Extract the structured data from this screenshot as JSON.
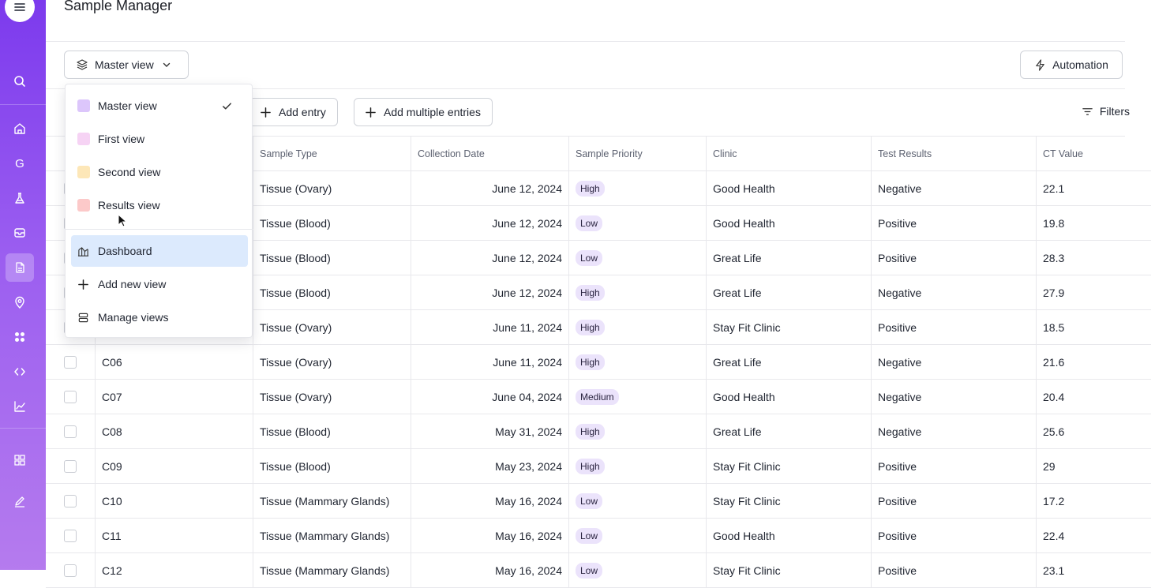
{
  "app": {
    "title": "Sample Manager"
  },
  "sidebar": {
    "items": [
      {
        "name": "search",
        "icon": "search-icon"
      },
      {
        "name": "home",
        "icon": "home-icon"
      },
      {
        "name": "g",
        "label": "G"
      },
      {
        "name": "lab",
        "icon": "flask-icon"
      },
      {
        "name": "inbox",
        "icon": "inbox-icon"
      },
      {
        "name": "document",
        "icon": "document-icon",
        "active": true
      },
      {
        "name": "location",
        "icon": "map-pin-icon"
      },
      {
        "name": "apps",
        "icon": "dots-grid-icon"
      },
      {
        "name": "code",
        "icon": "code-icon"
      },
      {
        "name": "analytics",
        "icon": "chart-icon"
      },
      {
        "name": "grid",
        "icon": "grid-icon"
      },
      {
        "name": "edit",
        "icon": "pen-icon"
      }
    ]
  },
  "viewbar": {
    "view_select_label": "Master view",
    "automation_label": "Automation"
  },
  "actionbar": {
    "add_entry_label": "Add entry",
    "add_multiple_label": "Add multiple entries",
    "filters_label": "Filters"
  },
  "dropdown": {
    "views": [
      {
        "label": "Master view",
        "color": "#dcc6fb",
        "selected": true
      },
      {
        "label": "First view",
        "color": "#f6d3f4"
      },
      {
        "label": "Second view",
        "color": "#fde7b8"
      },
      {
        "label": "Results view",
        "color": "#fcc9c9"
      }
    ],
    "actions": [
      {
        "label": "Dashboard",
        "icon": "dashboard-icon",
        "highlighted": true
      },
      {
        "label": "Add new view",
        "icon": "plus-icon"
      },
      {
        "label": "Manage views",
        "icon": "stack-icon"
      }
    ]
  },
  "table": {
    "columns": [
      "Sample Type",
      "Collection Date",
      "Sample Priority",
      "Clinic",
      "Test Results",
      "CT Value"
    ],
    "rows": [
      {
        "id": "",
        "type": "Tissue (Ovary)",
        "date": "June 12, 2024",
        "priority": "High",
        "clinic": "Good Health",
        "result": "Negative",
        "ct": "22.1"
      },
      {
        "id": "",
        "type": "Tissue (Blood)",
        "date": "June 12, 2024",
        "priority": "Low",
        "clinic": "Good Health",
        "result": "Positive",
        "ct": "19.8"
      },
      {
        "id": "",
        "type": "Tissue (Blood)",
        "date": "June 12, 2024",
        "priority": "Low",
        "clinic": "Great Life",
        "result": "Positive",
        "ct": "28.3"
      },
      {
        "id": "",
        "type": "Tissue (Blood)",
        "date": "June 12, 2024",
        "priority": "High",
        "clinic": "Great Life",
        "result": "Negative",
        "ct": "27.9"
      },
      {
        "id": "",
        "type": "Tissue (Ovary)",
        "date": "June 11, 2024",
        "priority": "High",
        "clinic": "Stay Fit Clinic",
        "result": "Positive",
        "ct": "18.5"
      },
      {
        "id": "C06",
        "type": "Tissue (Ovary)",
        "date": "June 11, 2024",
        "priority": "High",
        "clinic": "Great Life",
        "result": "Negative",
        "ct": "21.6"
      },
      {
        "id": "C07",
        "type": "Tissue (Ovary)",
        "date": "June 04, 2024",
        "priority": "Medium",
        "clinic": "Good Health",
        "result": "Negative",
        "ct": "20.4"
      },
      {
        "id": "C08",
        "type": "Tissue (Blood)",
        "date": "May 31, 2024",
        "priority": "High",
        "clinic": "Great Life",
        "result": "Negative",
        "ct": "25.6"
      },
      {
        "id": "C09",
        "type": "Tissue (Blood)",
        "date": "May 23, 2024",
        "priority": "High",
        "clinic": "Stay Fit Clinic",
        "result": "Positive",
        "ct": "29"
      },
      {
        "id": "C10",
        "type": "Tissue (Mammary Glands)",
        "date": "May 16, 2024",
        "priority": "Low",
        "clinic": "Stay Fit Clinic",
        "result": "Positive",
        "ct": "17.2"
      },
      {
        "id": "C11",
        "type": "Tissue (Mammary Glands)",
        "date": "May 16, 2024",
        "priority": "Low",
        "clinic": "Good Health",
        "result": "Positive",
        "ct": "22.4"
      },
      {
        "id": "C12",
        "type": "Tissue (Mammary Glands)",
        "date": "May 16, 2024",
        "priority": "Low",
        "clinic": "Stay Fit Clinic",
        "result": "Positive",
        "ct": "23.1"
      }
    ]
  }
}
